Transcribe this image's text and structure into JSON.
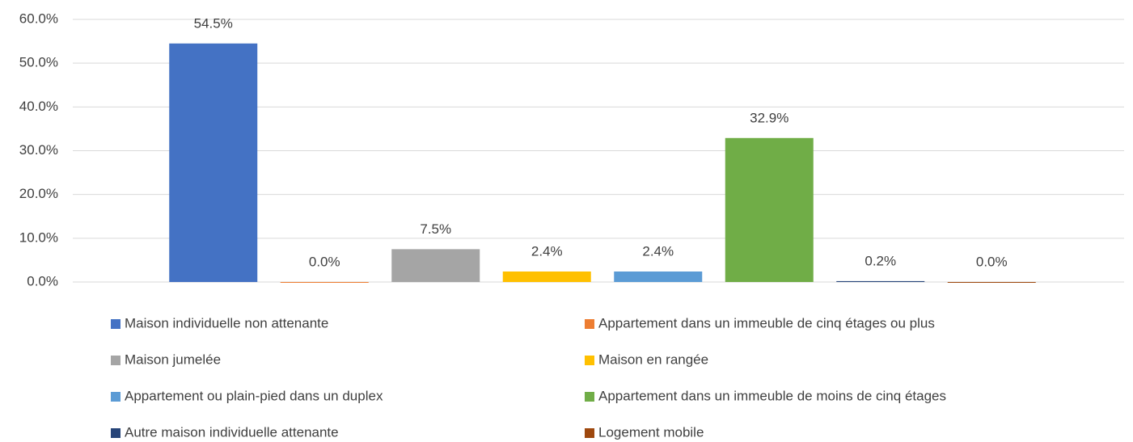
{
  "chart_data": {
    "type": "bar",
    "series": [
      {
        "name": "Maison individuelle non attenante",
        "color": "#4472c4",
        "values": [
          54.5
        ],
        "value_labels": [
          "54.5%"
        ]
      },
      {
        "name": "Appartement dans un immeuble de cinq étages ou plus",
        "color": "#ed7d31",
        "values": [
          0.0
        ],
        "value_labels": [
          "0.0%"
        ]
      },
      {
        "name": "Maison jumelée",
        "color": "#a5a5a5",
        "values": [
          7.5
        ],
        "value_labels": [
          "7.5%"
        ]
      },
      {
        "name": "Maison en rangée",
        "color": "#ffc000",
        "values": [
          2.4
        ],
        "value_labels": [
          "2.4%"
        ]
      },
      {
        "name": "Appartement ou plain-pied dans un duplex",
        "color": "#5b9bd5",
        "values": [
          2.4
        ],
        "value_labels": [
          "2.4%"
        ]
      },
      {
        "name": "Appartement dans un immeuble de moins de cinq étages",
        "color": "#70ad47",
        "values": [
          32.9
        ],
        "value_labels": [
          "32.9%"
        ]
      },
      {
        "name": "Autre maison individuelle attenante",
        "color": "#264478",
        "values": [
          0.2
        ],
        "value_labels": [
          "0.2%"
        ]
      },
      {
        "name": "Logement mobile",
        "color": "#9e480e",
        "values": [
          0.0
        ],
        "value_labels": [
          "0.0%"
        ]
      }
    ],
    "ylim": [
      0,
      60
    ],
    "yticks": [
      {
        "value": 0,
        "label": "0.0%"
      },
      {
        "value": 10,
        "label": "10.0%"
      },
      {
        "value": 20,
        "label": "20.0%"
      },
      {
        "value": 30,
        "label": "30.0%"
      },
      {
        "value": 40,
        "label": "40.0%"
      },
      {
        "value": 50,
        "label": "50.0%"
      },
      {
        "value": 60,
        "label": "60.0%"
      }
    ],
    "grid": true,
    "legend": "bottom"
  }
}
